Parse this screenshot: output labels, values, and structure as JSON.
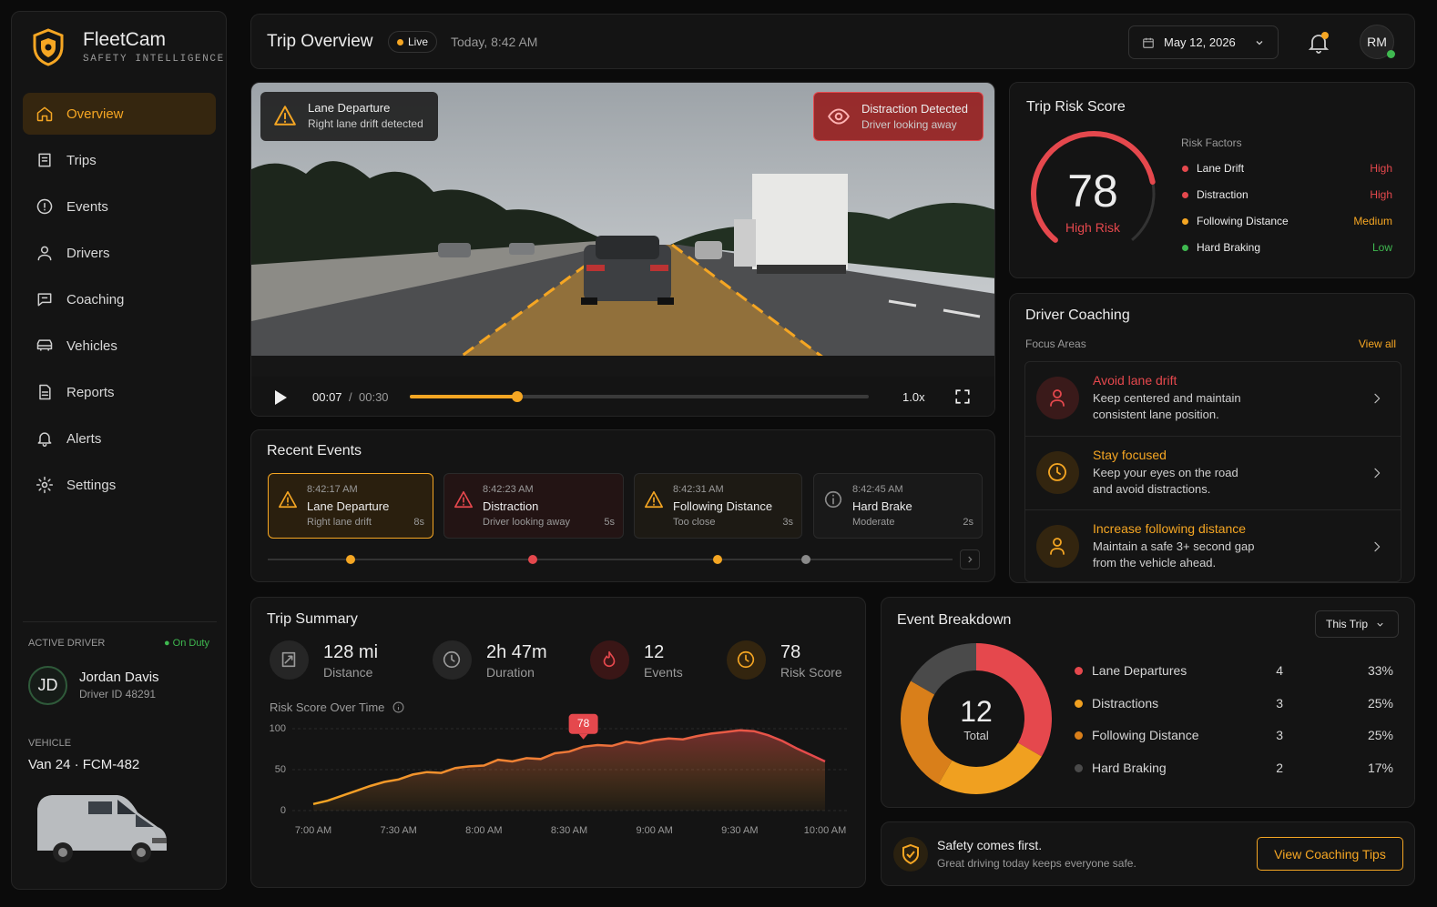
{
  "brand": {
    "name": "FleetCam",
    "tagline": "SAFETY INTELLIGENCE"
  },
  "nav": {
    "items": [
      "Overview",
      "Trips",
      "Events",
      "Drivers",
      "Coaching",
      "Vehicles",
      "Reports",
      "Alerts",
      "Settings"
    ]
  },
  "active_driver": {
    "label": "ACTIVE DRIVER",
    "status": "On Duty",
    "initials": "JD",
    "name": "Jordan Davis",
    "driver_id": "Driver ID 48291",
    "vehicle_label": "VEHICLE",
    "vehicle": "Van 24 · FCM-482"
  },
  "header": {
    "title": "Trip Overview",
    "live": "Live",
    "time": "Today, 8:42 AM",
    "date": "May 12, 2026",
    "avatar": "RM"
  },
  "video": {
    "alerts": [
      {
        "title": "Lane Departure",
        "text": "Right lane drift detected",
        "color": "#f5a623"
      },
      {
        "title": "Distraction Detected",
        "text": "Driver looking away",
        "color": "#e5484d"
      }
    ],
    "elapsed": "00:07",
    "separator": "/",
    "duration": "00:30",
    "speed": "1.0x"
  },
  "recent_events": {
    "title": "Recent Events",
    "items": [
      {
        "time": "8:42:17 AM",
        "title": "Lane Departure",
        "detail": "Right lane drift",
        "duration": "8s",
        "color": "#f5a623"
      },
      {
        "time": "8:42:23 AM",
        "title": "Distraction",
        "detail": "Driver looking away",
        "duration": "5s",
        "color": "#e5484d"
      },
      {
        "time": "8:42:31 AM",
        "title": "Following Distance",
        "detail": "Too close",
        "duration": "3s",
        "color": "#f5a623"
      },
      {
        "time": "8:42:45 AM",
        "title": "Hard Brake",
        "detail": "Moderate",
        "duration": "2s",
        "color": "#8a8a8a"
      }
    ]
  },
  "trip_risk": {
    "title": "Trip Risk Score",
    "score": 78,
    "gauge_range": [
      0,
      100
    ],
    "label": "High Risk",
    "color": "#e5484d",
    "factors_title": "Risk Factors",
    "factors": [
      {
        "name": "Lane Drift",
        "level": "High",
        "color": "#e5484d"
      },
      {
        "name": "Distraction",
        "level": "High",
        "color": "#e5484d"
      },
      {
        "name": "Following Distance",
        "level": "Medium",
        "color": "#f5a623"
      },
      {
        "name": "Hard Braking",
        "level": "Low",
        "color": "#3fb950"
      }
    ]
  },
  "coaching": {
    "title": "Driver Coaching",
    "subtitle": "Focus Areas",
    "link": "View all",
    "items": [
      {
        "title": "Avoid lane drift",
        "text": "Keep centered and maintain consistent lane position.",
        "color": "#e5484d"
      },
      {
        "title": "Stay focused",
        "text": "Keep your eyes on the road and avoid distractions.",
        "color": "#f5a623"
      },
      {
        "title": "Increase following distance",
        "text": "Maintain a safe 3+ second gap from the vehicle ahead.",
        "color": "#f5a623"
      }
    ]
  },
  "trip_summary": {
    "title": "Trip Summary",
    "stats": [
      {
        "value": "128 mi",
        "label": "Distance",
        "color": "#9a9a9a"
      },
      {
        "value": "2h 47m",
        "label": "Duration",
        "color": "#9a9a9a"
      },
      {
        "value": "12",
        "label": "Events",
        "color": "#e5484d"
      },
      {
        "value": "78",
        "label": "Risk Score",
        "color": "#f5a623"
      }
    ],
    "chart": {
      "type": "area",
      "title": "Risk Score Over Time",
      "categories": [
        "7:00 AM",
        null,
        null,
        null,
        null,
        null,
        "7:30 AM",
        null,
        null,
        null,
        null,
        null,
        "8:00 AM",
        null,
        null,
        null,
        null,
        null,
        "8:30 AM",
        null,
        null,
        null,
        null,
        null,
        "9:00 AM",
        null,
        null,
        null,
        null,
        null,
        "9:30 AM",
        null,
        null,
        null,
        null,
        null,
        "10:00 AM"
      ],
      "values": [
        8,
        12,
        18,
        24,
        30,
        35,
        38,
        44,
        47,
        46,
        52,
        54,
        55,
        62,
        60,
        64,
        63,
        70,
        72,
        78,
        80,
        79,
        84,
        82,
        86,
        88,
        87,
        91,
        94,
        96,
        98,
        97,
        92,
        85,
        76,
        68,
        60
      ],
      "colors": [
        "#f5a623",
        "#e5484d"
      ],
      "ylim": [
        0,
        100
      ],
      "yticks": [
        0,
        50,
        100
      ],
      "annotation": {
        "text": "78",
        "value": 78
      }
    }
  },
  "event_breakdown": {
    "title": "Event Breakdown",
    "filter": "This Trip",
    "total": 12,
    "total_label": "Total",
    "items": [
      {
        "name": "Lane Departures",
        "count": 4,
        "share": "33%",
        "color": "#e5484d"
      },
      {
        "name": "Distractions",
        "count": 3,
        "share": "25%",
        "color": "#f0a020"
      },
      {
        "name": "Following Distance",
        "count": 3,
        "share": "25%",
        "color": "#d97f1a"
      },
      {
        "name": "Hard Braking",
        "count": 2,
        "share": "17%",
        "color": "#4a4a4a"
      }
    ]
  },
  "banner": {
    "title": "Safety comes first.",
    "text": "Great driving today keeps everyone safe.",
    "button": "View Coaching Tips"
  }
}
